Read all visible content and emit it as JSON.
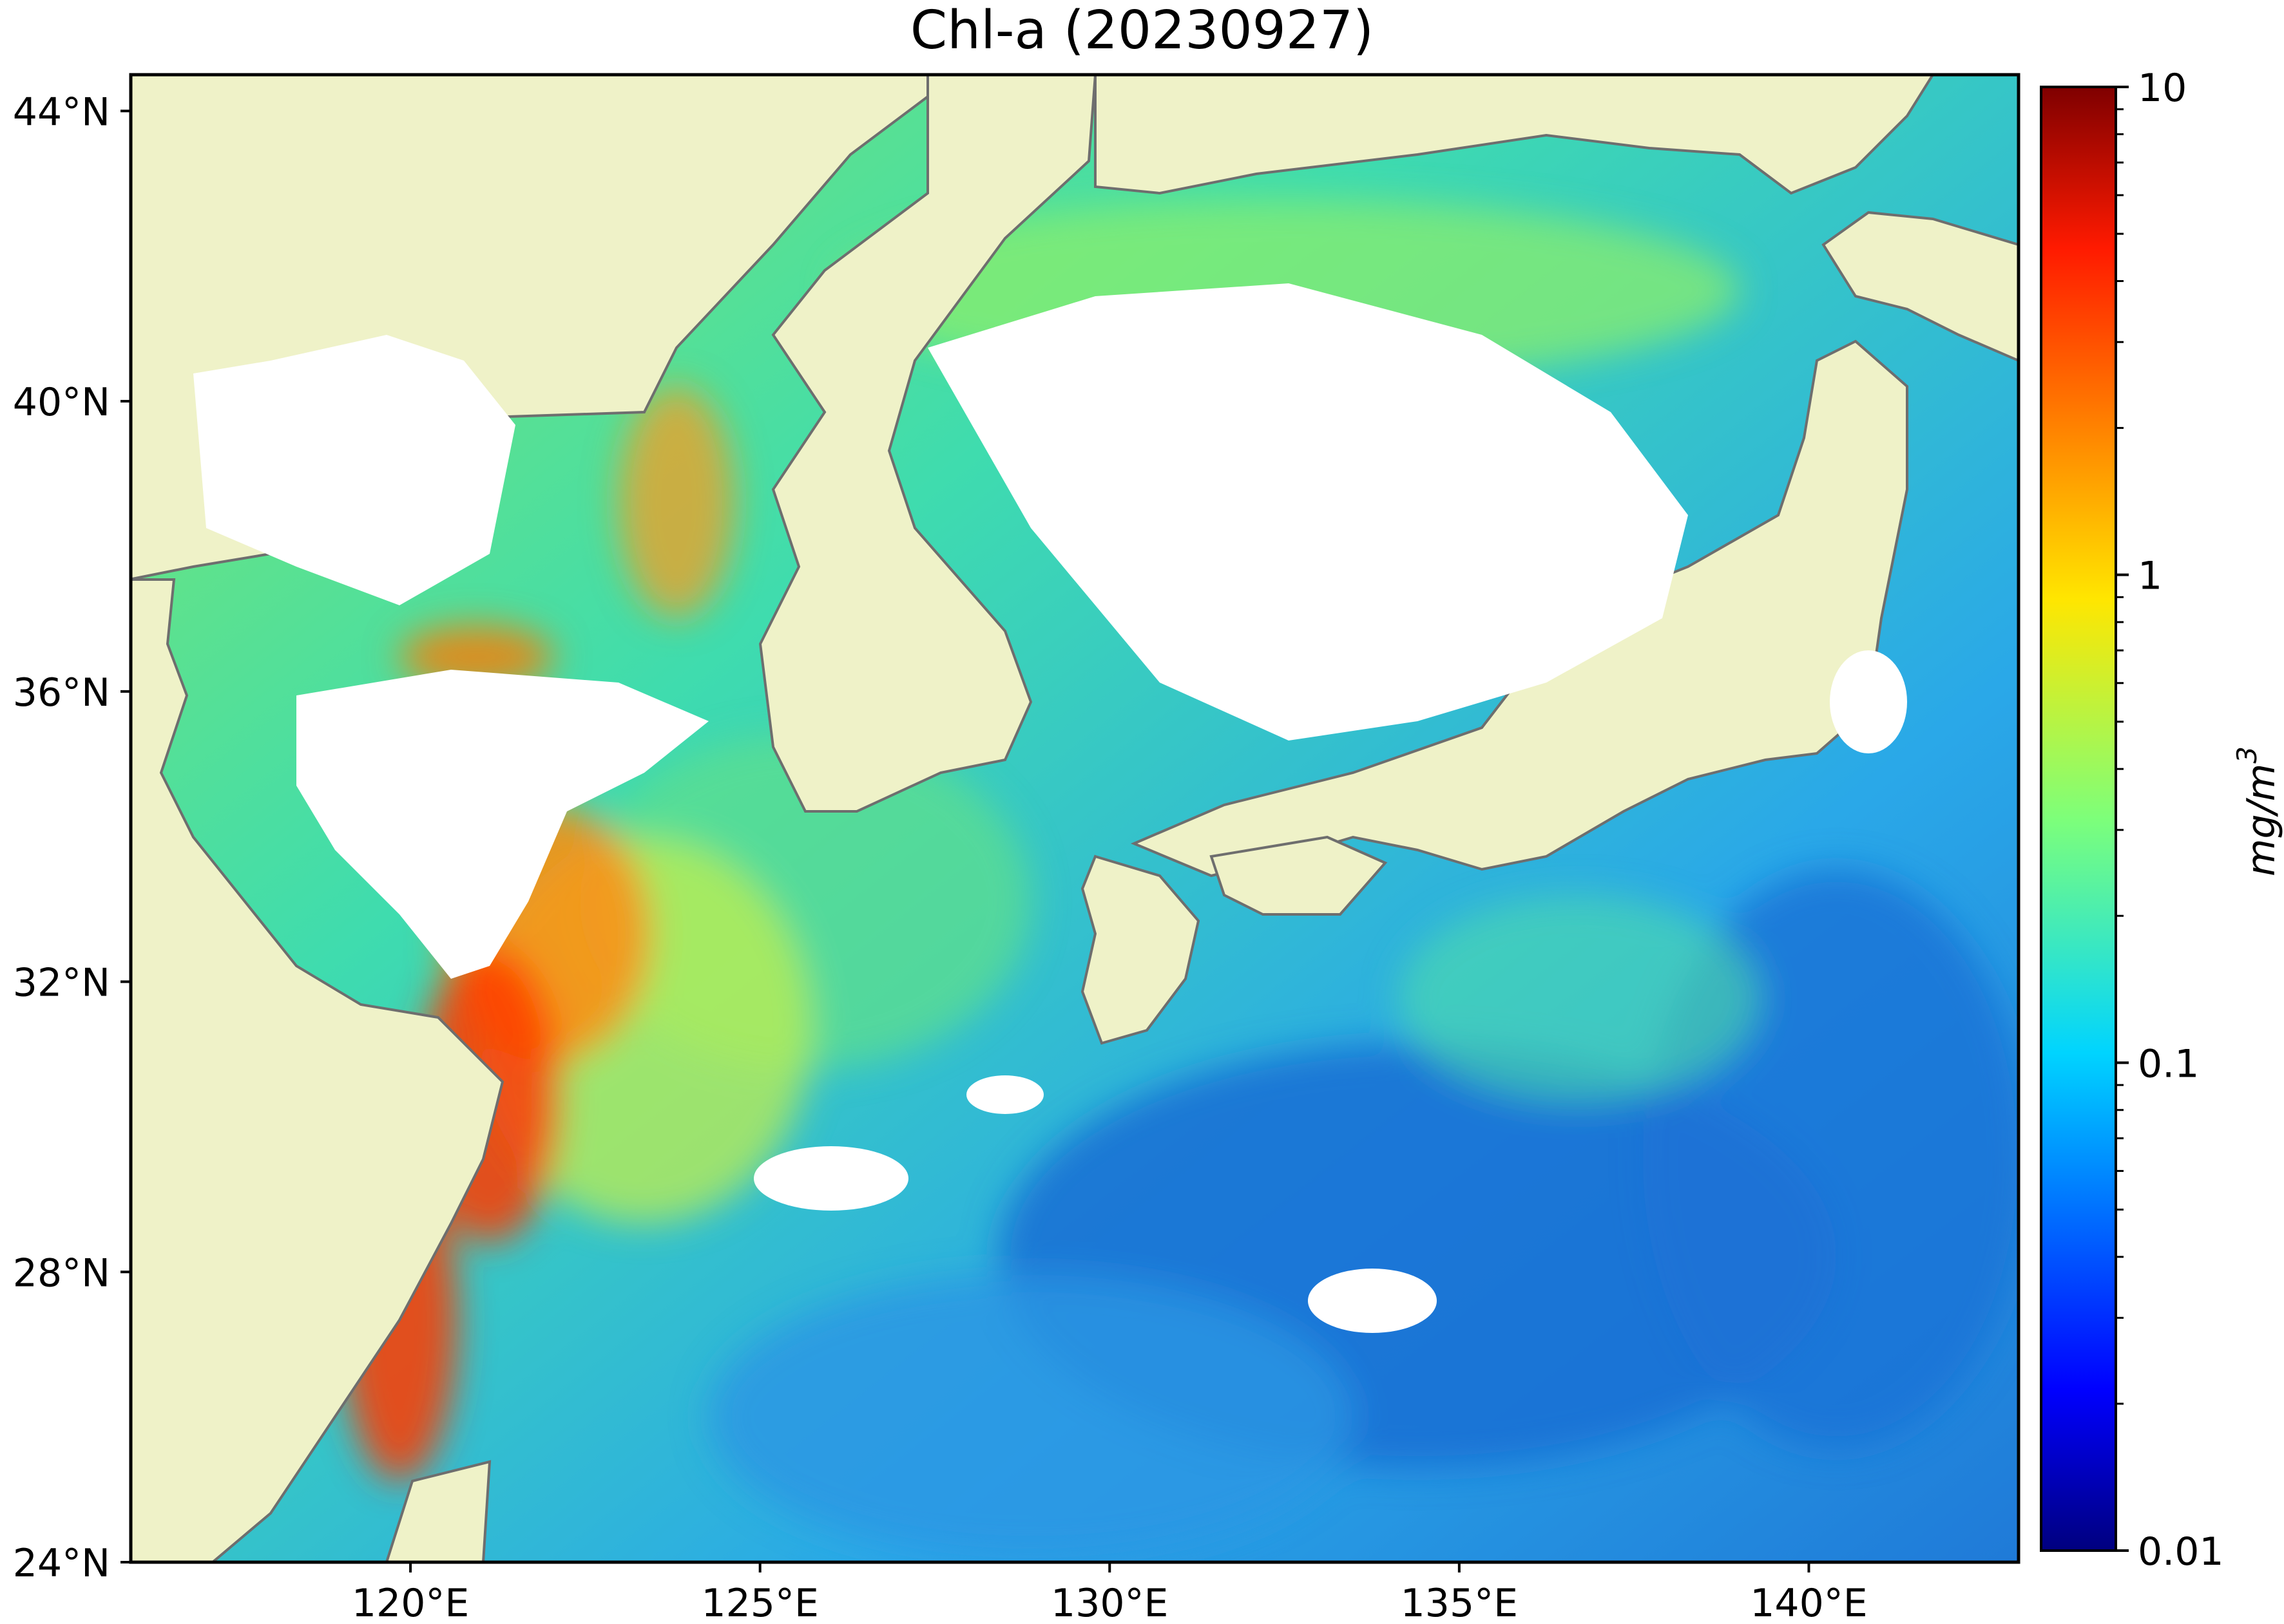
{
  "title": "Chl-a (20230927)",
  "map": {
    "lon_range": [
      116.0,
      143.0
    ],
    "lat_range": [
      24.0,
      44.5
    ],
    "land_color": "#eff2c8",
    "coast_color": "#6e6e6e",
    "nodata_color": "#ffffff",
    "lon_ticks": [
      {
        "value": 120,
        "label": "120°E"
      },
      {
        "value": 125,
        "label": "125°E"
      },
      {
        "value": 130,
        "label": "130°E"
      },
      {
        "value": 135,
        "label": "135°E"
      },
      {
        "value": 140,
        "label": "140°E"
      }
    ],
    "lat_ticks": [
      {
        "value": 44,
        "label": "44°N"
      },
      {
        "value": 40,
        "label": "40°N"
      },
      {
        "value": 36,
        "label": "36°N"
      },
      {
        "value": 32,
        "label": "32°N"
      },
      {
        "value": 28,
        "label": "28°N"
      },
      {
        "value": 24,
        "label": "24°N"
      }
    ]
  },
  "colorbar": {
    "scale": "log",
    "min": 0.01,
    "max": 10,
    "colormap": "jet",
    "ticks": [
      {
        "value": 10,
        "label": "10"
      },
      {
        "value": 1,
        "label": "1"
      },
      {
        "value": 0.1,
        "label": "0.1"
      },
      {
        "value": 0.01,
        "label": "0.01"
      }
    ],
    "unit_label": "mg/m",
    "unit_superscript": "3"
  }
}
